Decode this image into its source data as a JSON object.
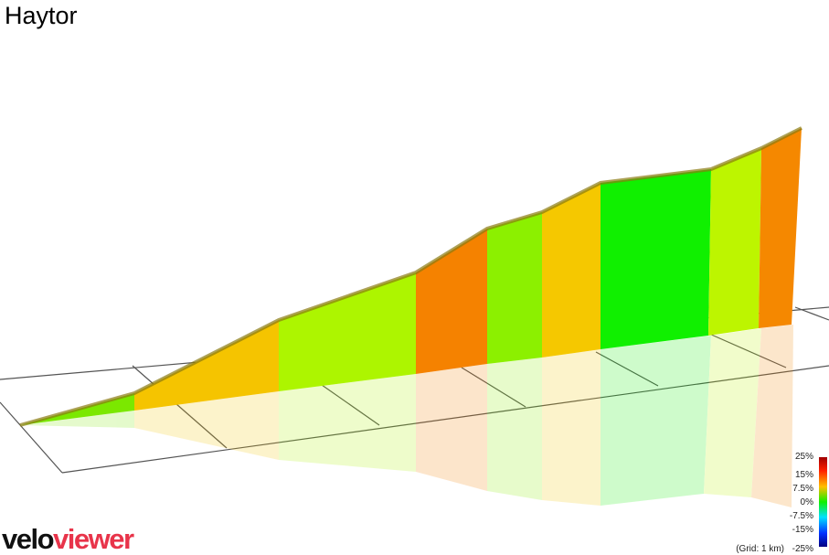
{
  "header": {
    "title": "Haytor"
  },
  "legend": {
    "labels": [
      "25%",
      "15%",
      "7.5%",
      "0%",
      "-7.5%",
      "-15%",
      "-25%"
    ],
    "grid_note": "(Grid: 1 km)"
  },
  "logo": {
    "part1": "velo",
    "part2": "viewer"
  }
}
